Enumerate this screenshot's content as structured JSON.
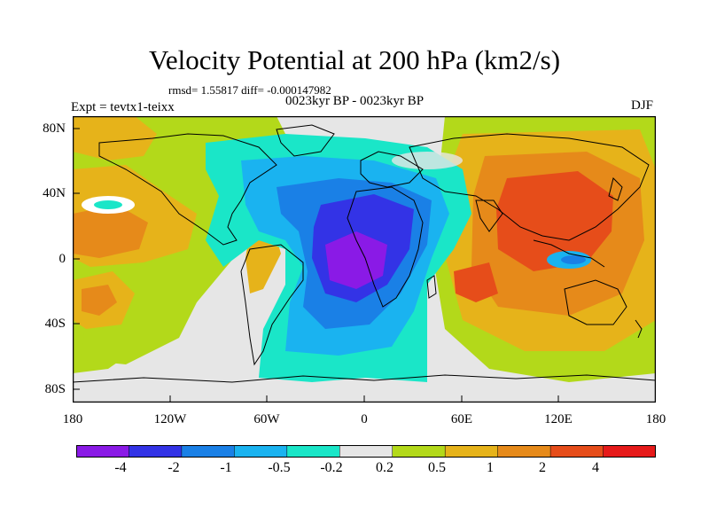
{
  "title": "Velocity Potential at 200 hPa (km2/s)",
  "stats": "rmsd= 1.55817 diff= -0.000147982",
  "experiment": "Expt = tevtx1-teixx",
  "period": "0023kyr BP - 0023kyr BP",
  "season": "DJF",
  "axes": {
    "y_labels": [
      "80N",
      "40N",
      "0",
      "40S",
      "80S"
    ],
    "x_labels": [
      "180",
      "120W",
      "60W",
      "0",
      "60E",
      "120E",
      "180"
    ]
  },
  "colorbar": {
    "labels": [
      "-4",
      "-2",
      "-1",
      "-0.5",
      "-0.2",
      "0.2",
      "0.5",
      "1",
      "2",
      "4"
    ],
    "colors": [
      "#8a1ae6",
      "#3333e6",
      "#1a80e6",
      "#1ab3f0",
      "#1ae6c8",
      "#e6e6e6",
      "#b3d91a",
      "#e6b31a",
      "#e68a1a",
      "#e64d1a",
      "#e61a1a"
    ]
  },
  "map_fills": {
    "background": "#e6e6e6"
  },
  "icons": [
    "world-coastline-map"
  ]
}
